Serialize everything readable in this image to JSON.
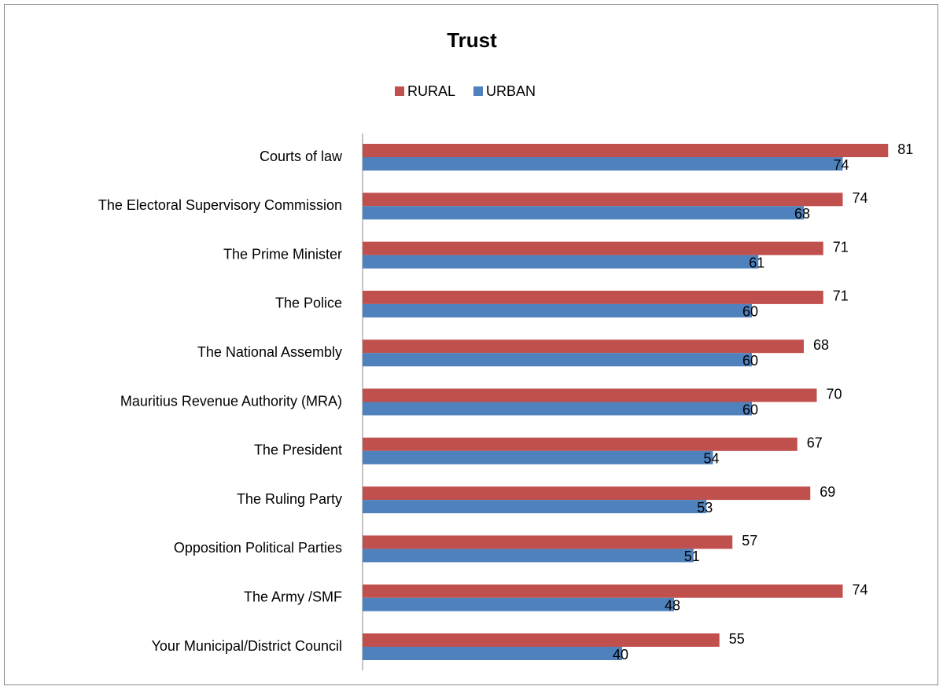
{
  "chart_data": {
    "type": "hbar",
    "title": "Trust",
    "categories": [
      "Courts of law",
      "The Electoral Supervisory Commission",
      "The Prime Minister",
      "The Police",
      "The National Assembly",
      "Mauritius Revenue Authority (MRA)",
      "The President",
      "The Ruling Party",
      "Opposition Political Parties",
      "The Army /SMF",
      "Your Municipal/District Council"
    ],
    "series": [
      {
        "name": "RURAL",
        "color": "#c0504d",
        "values": [
          81,
          74,
          71,
          71,
          68,
          70,
          67,
          69,
          57,
          74,
          55
        ]
      },
      {
        "name": "URBAN",
        "color": "#4f81bd",
        "values": [
          74,
          68,
          61,
          60,
          60,
          60,
          54,
          53,
          51,
          48,
          40
        ]
      }
    ],
    "legend": "top"
  }
}
